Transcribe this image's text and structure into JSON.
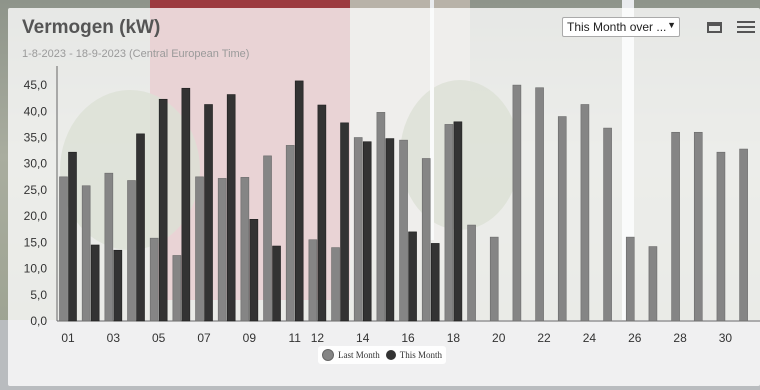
{
  "header": {
    "title": "Vermogen (kW)",
    "subtitle": "1-8-2023 - 18-9-2023 (Central European Time)",
    "range_select": "This Month over ..."
  },
  "icons": {
    "window": "window-icon",
    "menu": "hamburger-menu-icon"
  },
  "colors": {
    "last_month": "#858585",
    "this_month": "#333333"
  },
  "chart_data": {
    "type": "bar",
    "xlabel": "",
    "ylabel": "",
    "ylim": [
      0,
      47.5
    ],
    "yticks": [
      "0,0",
      "5,0",
      "10,0",
      "15,0",
      "20,0",
      "25,0",
      "30,0",
      "35,0",
      "40,0",
      "45,0"
    ],
    "categories": [
      "01",
      "02",
      "03",
      "04",
      "05",
      "06",
      "07",
      "08",
      "09",
      "10",
      "11",
      "12",
      "13",
      "14",
      "15",
      "16",
      "17",
      "18",
      "19",
      "20",
      "21",
      "22",
      "23",
      "24",
      "25",
      "26",
      "27",
      "28",
      "29",
      "30",
      "31"
    ],
    "xtick_labels": [
      "01",
      "03",
      "05",
      "07",
      "09",
      "11",
      "12",
      "14",
      "16",
      "18",
      "20",
      "22",
      "24",
      "26",
      "28",
      "30"
    ],
    "xtick_days": [
      1,
      3,
      5,
      7,
      9,
      11,
      12,
      14,
      16,
      18,
      20,
      22,
      24,
      26,
      28,
      30
    ],
    "series": [
      {
        "name": "Last Month",
        "values": [
          27.5,
          25.8,
          28.2,
          26.8,
          15.8,
          12.5,
          27.5,
          27.2,
          27.4,
          31.5,
          33.5,
          15.5,
          14.0,
          35.0,
          39.8,
          34.5,
          31.0,
          37.5,
          18.3,
          16.0,
          45.0,
          44.5,
          39.0,
          41.3,
          36.8,
          16.0,
          14.2,
          36.0,
          36.0,
          32.2,
          32.8
        ]
      },
      {
        "name": "This Month",
        "values": [
          32.2,
          14.5,
          13.5,
          35.7,
          42.3,
          44.4,
          41.3,
          43.2,
          19.4,
          14.3,
          45.8,
          41.2,
          37.8,
          34.2,
          34.8,
          17.0,
          14.8,
          38.0,
          null,
          null,
          null,
          null,
          null,
          null,
          null,
          null,
          null,
          null,
          null,
          null,
          null
        ]
      }
    ],
    "legend_position": "bottom-center",
    "grid": false
  }
}
